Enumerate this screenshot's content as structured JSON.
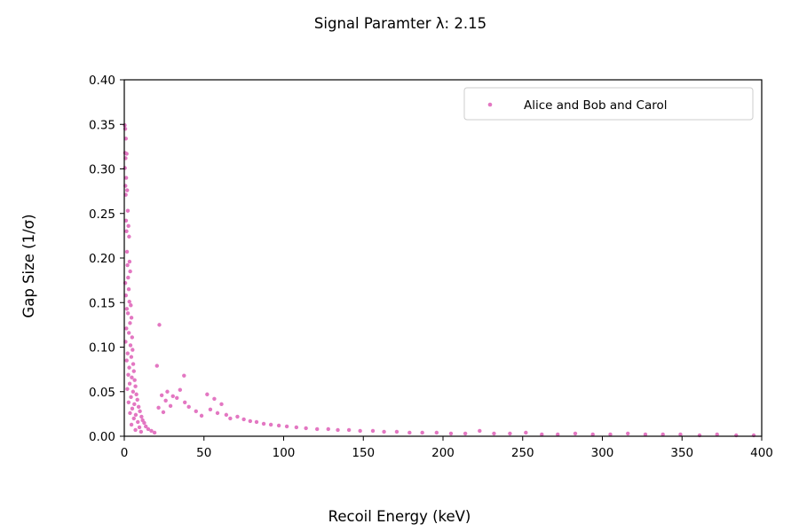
{
  "chart_data": {
    "type": "scatter",
    "title": "Signal Paramter λ:  2.15",
    "xlabel": "Recoil Energy (keV)",
    "ylabel": "Gap Size (1/σ)",
    "xlim": [
      0,
      400
    ],
    "ylim": [
      0,
      0.4
    ],
    "xticks": [
      0,
      50,
      100,
      150,
      200,
      250,
      300,
      350,
      400
    ],
    "yticks": [
      0.0,
      0.05,
      0.1,
      0.15,
      0.2,
      0.25,
      0.3,
      0.35,
      0.4
    ],
    "xtick_labels": [
      "0",
      "50",
      "100",
      "150",
      "200",
      "250",
      "300",
      "350",
      "400"
    ],
    "ytick_labels": [
      "0.00",
      "0.05",
      "0.10",
      "0.15",
      "0.20",
      "0.25",
      "0.30",
      "0.35",
      "0.40"
    ],
    "grid": false,
    "legend_position": "top-right",
    "series": [
      {
        "name": "Alice and Bob and Carol",
        "color": "#e377c2",
        "points": [
          [
            0.3,
            0.349
          ],
          [
            0.6,
            0.345
          ],
          [
            1.0,
            0.334
          ],
          [
            0.5,
            0.318
          ],
          [
            1.5,
            0.317
          ],
          [
            0.8,
            0.312
          ],
          [
            0.4,
            0.301
          ],
          [
            1.2,
            0.29
          ],
          [
            0.7,
            0.281
          ],
          [
            1.8,
            0.276
          ],
          [
            0.9,
            0.271
          ],
          [
            2.2,
            0.253
          ],
          [
            1.1,
            0.242
          ],
          [
            2.6,
            0.236
          ],
          [
            1.4,
            0.23
          ],
          [
            3.0,
            0.224
          ],
          [
            1.7,
            0.207
          ],
          [
            3.3,
            0.196
          ],
          [
            2.0,
            0.192
          ],
          [
            3.7,
            0.185
          ],
          [
            2.4,
            0.178
          ],
          [
            0.6,
            0.172
          ],
          [
            2.8,
            0.165
          ],
          [
            1.0,
            0.158
          ],
          [
            3.2,
            0.151
          ],
          [
            4.1,
            0.147
          ],
          [
            1.6,
            0.143
          ],
          [
            2.3,
            0.138
          ],
          [
            4.5,
            0.133
          ],
          [
            3.6,
            0.127
          ],
          [
            1.3,
            0.121
          ],
          [
            2.9,
            0.116
          ],
          [
            4.9,
            0.111
          ],
          [
            0.8,
            0.106
          ],
          [
            3.9,
            0.102
          ],
          [
            5.2,
            0.097
          ],
          [
            2.1,
            0.093
          ],
          [
            4.4,
            0.089
          ],
          [
            1.5,
            0.085
          ],
          [
            5.6,
            0.081
          ],
          [
            3.1,
            0.077
          ],
          [
            6.0,
            0.073
          ],
          [
            2.5,
            0.069
          ],
          [
            4.7,
            0.066
          ],
          [
            6.5,
            0.063
          ],
          [
            3.4,
            0.059
          ],
          [
            7.0,
            0.056
          ],
          [
            1.9,
            0.053
          ],
          [
            5.5,
            0.05
          ],
          [
            7.6,
            0.047
          ],
          [
            4.2,
            0.044
          ],
          [
            8.2,
            0.041
          ],
          [
            2.7,
            0.038
          ],
          [
            6.3,
            0.036
          ],
          [
            9.0,
            0.033
          ],
          [
            5.0,
            0.031
          ],
          [
            9.8,
            0.028
          ],
          [
            3.6,
            0.026
          ],
          [
            7.2,
            0.024
          ],
          [
            10.8,
            0.022
          ],
          [
            6.0,
            0.02
          ],
          [
            11.5,
            0.018
          ],
          [
            8.5,
            0.016
          ],
          [
            12.5,
            0.015
          ],
          [
            4.5,
            0.013
          ],
          [
            13.5,
            0.011
          ],
          [
            9.5,
            0.01
          ],
          [
            15.0,
            0.008
          ],
          [
            7.0,
            0.007
          ],
          [
            17.0,
            0.006
          ],
          [
            10.5,
            0.005
          ],
          [
            19.0,
            0.004
          ],
          [
            22.0,
            0.125
          ],
          [
            20.5,
            0.079
          ],
          [
            37.5,
            0.068
          ],
          [
            23.5,
            0.046
          ],
          [
            35.0,
            0.052
          ],
          [
            27.0,
            0.05
          ],
          [
            30.5,
            0.045
          ],
          [
            33.0,
            0.043
          ],
          [
            38.0,
            0.038
          ],
          [
            26.0,
            0.04
          ],
          [
            52.0,
            0.047
          ],
          [
            56.5,
            0.042
          ],
          [
            61.0,
            0.036
          ],
          [
            29.0,
            0.034
          ],
          [
            40.5,
            0.033
          ],
          [
            45.0,
            0.028
          ],
          [
            21.5,
            0.032
          ],
          [
            24.5,
            0.027
          ],
          [
            48.5,
            0.023
          ],
          [
            54.0,
            0.03
          ],
          [
            58.5,
            0.026
          ],
          [
            64.0,
            0.024
          ],
          [
            66.5,
            0.02
          ],
          [
            71.0,
            0.022
          ],
          [
            75.0,
            0.019
          ],
          [
            79.0,
            0.017
          ],
          [
            83.0,
            0.016
          ],
          [
            87.5,
            0.014
          ],
          [
            92.0,
            0.013
          ],
          [
            97.0,
            0.012
          ],
          [
            102.0,
            0.011
          ],
          [
            108.0,
            0.01
          ],
          [
            114.0,
            0.009
          ],
          [
            121.0,
            0.008
          ],
          [
            128.0,
            0.008
          ],
          [
            134.0,
            0.007
          ],
          [
            141.0,
            0.007
          ],
          [
            148.0,
            0.006
          ],
          [
            156.0,
            0.006
          ],
          [
            163.0,
            0.005
          ],
          [
            171.0,
            0.005
          ],
          [
            179.0,
            0.004
          ],
          [
            187.0,
            0.004
          ],
          [
            196.0,
            0.004
          ],
          [
            205.0,
            0.003
          ],
          [
            214.0,
            0.003
          ],
          [
            223.0,
            0.006
          ],
          [
            232.0,
            0.003
          ],
          [
            242.0,
            0.003
          ],
          [
            252.0,
            0.004
          ],
          [
            262.0,
            0.002
          ],
          [
            272.0,
            0.002
          ],
          [
            283.0,
            0.003
          ],
          [
            294.0,
            0.002
          ],
          [
            305.0,
            0.002
          ],
          [
            316.0,
            0.003
          ],
          [
            327.0,
            0.002
          ],
          [
            338.0,
            0.002
          ],
          [
            349.0,
            0.002
          ],
          [
            361.0,
            0.001
          ],
          [
            372.0,
            0.002
          ],
          [
            384.0,
            0.001
          ],
          [
            395.0,
            0.001
          ]
        ]
      }
    ]
  }
}
